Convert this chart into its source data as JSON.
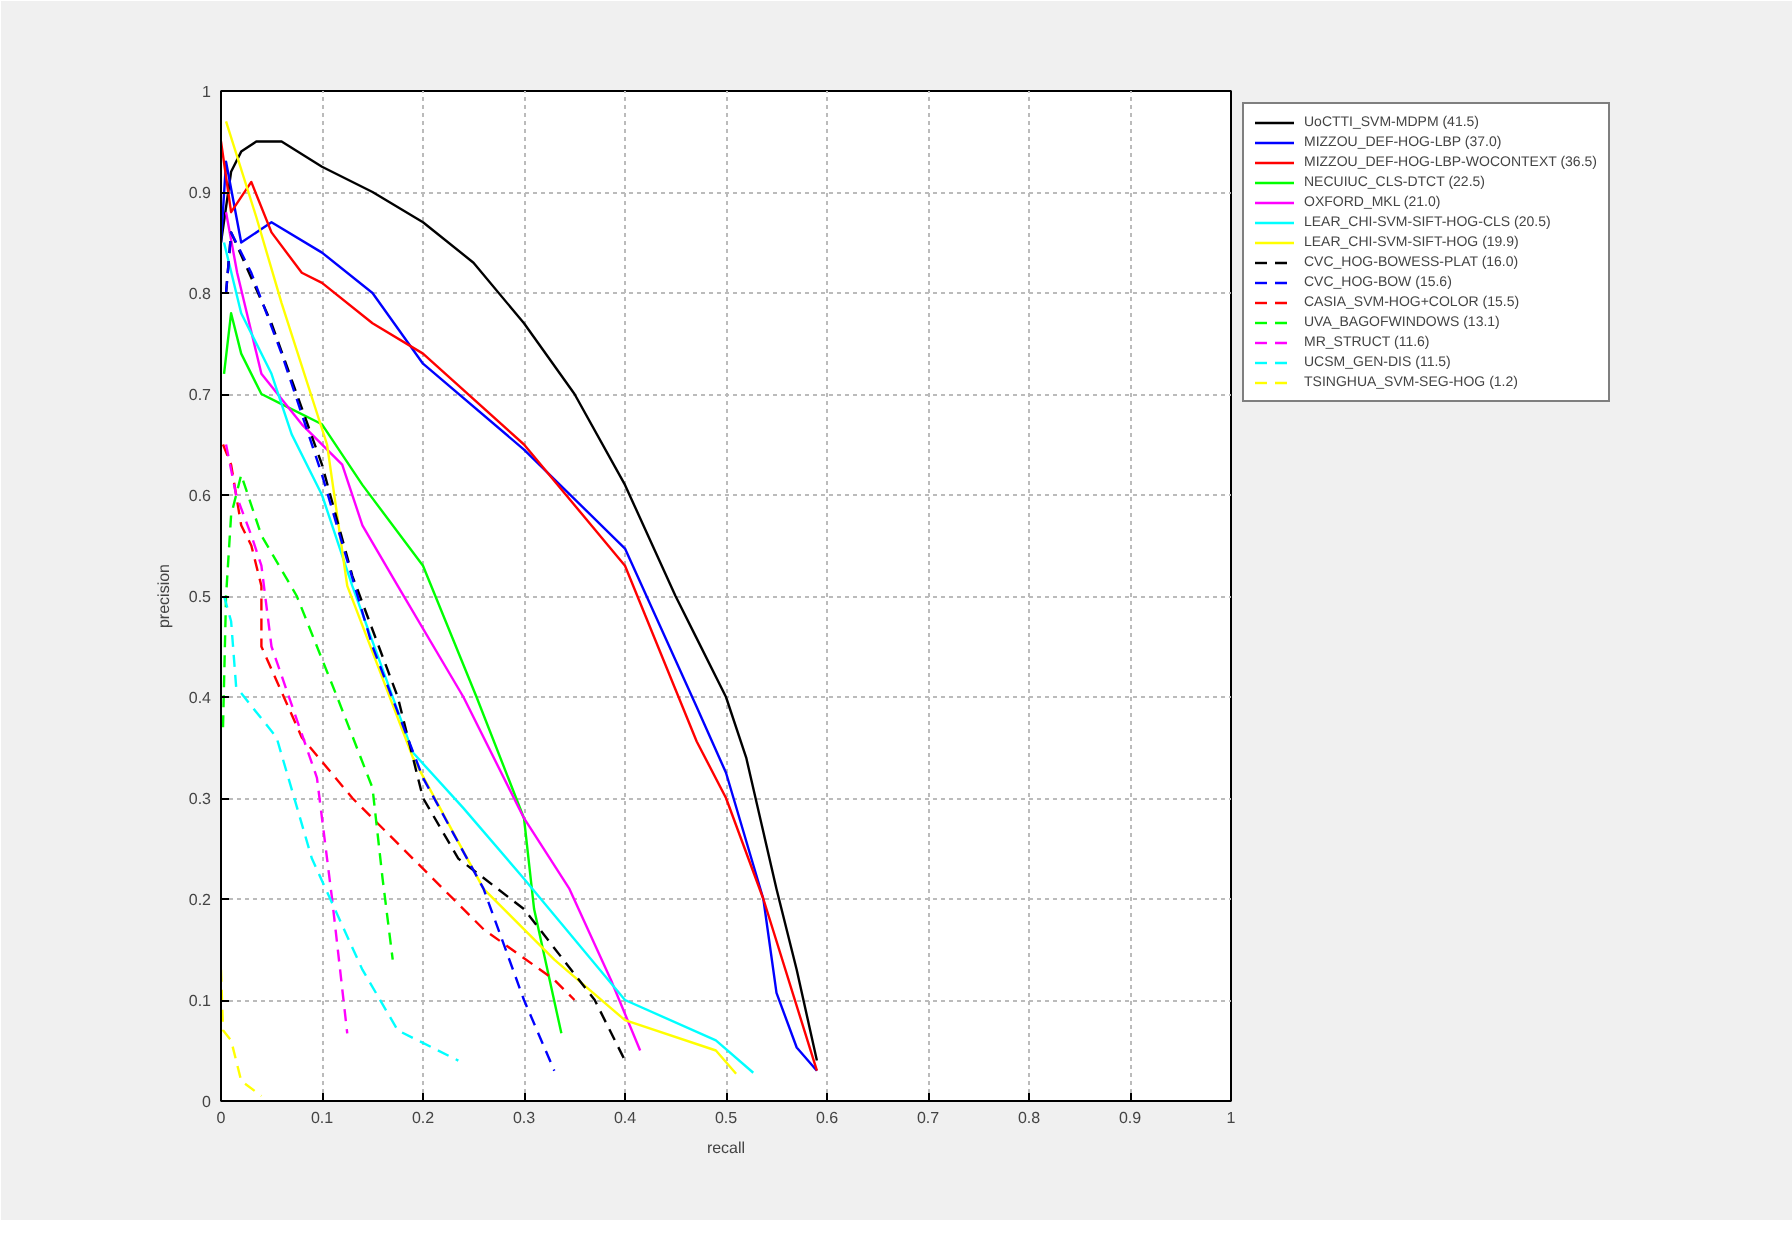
{
  "chart_data": {
    "type": "line",
    "xlabel": "recall",
    "ylabel": "precision",
    "xlim": [
      0,
      1
    ],
    "ylim": [
      0,
      1
    ],
    "xticks": [
      0,
      0.1,
      0.2,
      0.3,
      0.4,
      0.5,
      0.6,
      0.7,
      0.8,
      0.9,
      1
    ],
    "yticks": [
      0,
      0.1,
      0.2,
      0.3,
      0.4,
      0.5,
      0.6,
      0.7,
      0.8,
      0.9,
      1
    ],
    "grid": true,
    "legend": "top right",
    "marker": "none",
    "series": [
      {
        "name": "UoCTTI_SVM-MDPM (41.5)",
        "color": "#000000",
        "line_style": "solid",
        "x": [
          0,
          0.01,
          0.02,
          0.035,
          0.06,
          0.1,
          0.15,
          0.2,
          0.25,
          0.3,
          0.35,
          0.4,
          0.45,
          0.47,
          0.5,
          0.52,
          0.55,
          0.57,
          0.59
        ],
        "values": [
          0.85,
          0.92,
          0.94,
          0.95,
          0.95,
          0.925,
          0.9,
          0.87,
          0.83,
          0.77,
          0.7,
          0.61,
          0.5,
          0.46,
          0.4,
          0.34,
          0.21,
          0.13,
          0.04
        ]
      },
      {
        "name": "MIZZOU_DEF-HOG-LBP (37.0)",
        "color": "#0000ff",
        "line_style": "solid",
        "x": [
          0,
          0.005,
          0.02,
          0.05,
          0.1,
          0.15,
          0.2,
          0.3,
          0.4,
          0.471,
          0.5,
          0.537,
          0.55,
          0.57,
          0.59
        ],
        "values": [
          0.85,
          0.93,
          0.85,
          0.87,
          0.84,
          0.8,
          0.73,
          0.645,
          0.547,
          0.39,
          0.325,
          0.2,
          0.107,
          0.053,
          0.03
        ]
      },
      {
        "name": "MIZZOU_DEF-HOG-LBP-WOCONTEXT (36.5)",
        "color": "#ff0000",
        "line_style": "solid",
        "x": [
          0,
          0.01,
          0.03,
          0.05,
          0.08,
          0.1,
          0.15,
          0.2,
          0.3,
          0.4,
          0.471,
          0.5,
          0.537,
          0.59
        ],
        "values": [
          0.95,
          0.88,
          0.91,
          0.86,
          0.82,
          0.81,
          0.77,
          0.74,
          0.65,
          0.53,
          0.356,
          0.3,
          0.2,
          0.03
        ]
      },
      {
        "name": "NECUIUC_CLS-DTCT (22.5)",
        "color": "#00ff00",
        "line_style": "solid",
        "x": [
          0.003,
          0.01,
          0.02,
          0.04,
          0.06,
          0.1,
          0.14,
          0.2,
          0.253,
          0.3,
          0.31,
          0.337
        ],
        "values": [
          0.72,
          0.78,
          0.74,
          0.7,
          0.69,
          0.67,
          0.61,
          0.53,
          0.4,
          0.28,
          0.19,
          0.067
        ]
      },
      {
        "name": "OXFORD_MKL (21.0)",
        "color": "#ff00ff",
        "line_style": "solid",
        "x": [
          0.005,
          0.016,
          0.04,
          0.08,
          0.12,
          0.14,
          0.175,
          0.24,
          0.3,
          0.345,
          0.386,
          0.415
        ],
        "values": [
          0.88,
          0.82,
          0.72,
          0.67,
          0.63,
          0.57,
          0.51,
          0.4,
          0.28,
          0.21,
          0.12,
          0.05
        ]
      },
      {
        "name": "LEAR_CHI-SVM-SIFT-HOG-CLS (20.5)",
        "color": "#00ffff",
        "line_style": "solid",
        "x": [
          0.003,
          0.02,
          0.05,
          0.07,
          0.1,
          0.13,
          0.19,
          0.24,
          0.3,
          0.4,
          0.49,
          0.527
        ],
        "values": [
          0.85,
          0.78,
          0.72,
          0.66,
          0.6,
          0.51,
          0.345,
          0.29,
          0.22,
          0.1,
          0.06,
          0.028
        ]
      },
      {
        "name": "LEAR_CHI-SVM-SIFT-HOG (19.9)",
        "color": "#ffff00",
        "line_style": "solid",
        "x": [
          0.005,
          0.035,
          0.06,
          0.105,
          0.125,
          0.19,
          0.26,
          0.33,
          0.4,
          0.49,
          0.51
        ],
        "values": [
          0.97,
          0.875,
          0.79,
          0.65,
          0.51,
          0.34,
          0.21,
          0.14,
          0.08,
          0.05,
          0.027
        ]
      },
      {
        "name": "CVC_HOG-BOWESS-PLAT (16.0)",
        "color": "#000000",
        "line_style": "dashed",
        "x": [
          0.005,
          0.01,
          0.05,
          0.1,
          0.13,
          0.175,
          0.2,
          0.235,
          0.3,
          0.37,
          0.4
        ],
        "values": [
          0.8,
          0.86,
          0.77,
          0.63,
          0.52,
          0.4,
          0.3,
          0.24,
          0.19,
          0.1,
          0.04
        ]
      },
      {
        "name": "CVC_HOG-BOW (15.6)",
        "color": "#0000ff",
        "line_style": "dashed",
        "x": [
          0.005,
          0.01,
          0.03,
          0.06,
          0.1,
          0.15,
          0.2,
          0.23,
          0.26,
          0.3,
          0.33
        ],
        "values": [
          0.8,
          0.86,
          0.82,
          0.74,
          0.62,
          0.45,
          0.32,
          0.265,
          0.21,
          0.1,
          0.03
        ]
      },
      {
        "name": "CASIA_SVM-HOG+COLOR (15.5)",
        "color": "#ff0000",
        "line_style": "dashed",
        "x": [
          0.002,
          0.01,
          0.02,
          0.03,
          0.04,
          0.04,
          0.08,
          0.13,
          0.19,
          0.26,
          0.33,
          0.35
        ],
        "values": [
          0.65,
          0.63,
          0.57,
          0.55,
          0.51,
          0.45,
          0.36,
          0.3,
          0.24,
          0.17,
          0.12,
          0.1
        ]
      },
      {
        "name": "UVA_BAGOFWINDOWS (13.1)",
        "color": "#00ff00",
        "line_style": "dashed",
        "x": [
          0.002,
          0.005,
          0.01,
          0.02,
          0.04,
          0.075,
          0.115,
          0.15,
          0.16,
          0.17
        ],
        "values": [
          0.37,
          0.5,
          0.58,
          0.62,
          0.56,
          0.5,
          0.4,
          0.31,
          0.22,
          0.14
        ]
      },
      {
        "name": "MR_STRUCT (11.6)",
        "color": "#ff00ff",
        "line_style": "dashed",
        "x": [
          0.005,
          0.015,
          0.03,
          0.04,
          0.05,
          0.095,
          0.11,
          0.125
        ],
        "values": [
          0.65,
          0.6,
          0.56,
          0.53,
          0.45,
          0.32,
          0.2,
          0.067
        ]
      },
      {
        "name": "UCSM_GEN-DIS (11.5)",
        "color": "#00ffff",
        "line_style": "dashed",
        "x": [
          0.003,
          0.01,
          0.015,
          0.055,
          0.09,
          0.14,
          0.175,
          0.235
        ],
        "values": [
          0.5,
          0.475,
          0.41,
          0.36,
          0.24,
          0.13,
          0.07,
          0.04
        ]
      },
      {
        "name": "TSINGHUA_SVM-SEG-HOG (1.2)",
        "color": "#ffff00",
        "line_style": "dashed",
        "x": [
          0,
          0.002,
          0.01,
          0.02,
          0.04
        ],
        "values": [
          0.13,
          0.07,
          0.06,
          0.02,
          0.005
        ]
      }
    ]
  }
}
